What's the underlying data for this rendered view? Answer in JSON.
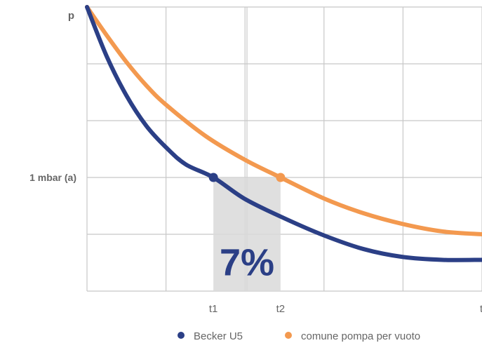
{
  "chart_data": {
    "type": "line",
    "title": "",
    "xlabel": "t",
    "ylabel": "p",
    "xlim": [
      0,
      10
    ],
    "ylim": [
      0,
      5
    ],
    "grid": true,
    "legend_position": "bottom-right",
    "reference_level": {
      "label": "1 mbar (a)",
      "y": 2
    },
    "x_markers": [
      {
        "label": "t1",
        "x": 3.2
      },
      {
        "label": "t2",
        "x": 4.9
      }
    ],
    "highlight": {
      "label": "7%",
      "x_from": 3.2,
      "x_to": 4.9,
      "y_from": 0,
      "y_to": 2,
      "color": "#d9d9d9"
    },
    "series": [
      {
        "name": "Becker U5",
        "color": "#2b3f86",
        "x": [
          0,
          0.5,
          1,
          1.5,
          2,
          2.5,
          3.2,
          4,
          5,
          6,
          7,
          8,
          9,
          10
        ],
        "values": [
          5.0,
          4.13,
          3.44,
          2.91,
          2.53,
          2.23,
          2.0,
          1.62,
          1.28,
          0.98,
          0.74,
          0.6,
          0.55,
          0.55
        ]
      },
      {
        "name": "comune pompa per vuoto",
        "color": "#f3994f",
        "x": [
          0,
          0.5,
          1,
          1.5,
          2,
          3,
          4,
          4.9,
          6,
          7,
          8,
          9,
          10
        ],
        "values": [
          5.0,
          4.5,
          4.03,
          3.62,
          3.28,
          2.73,
          2.31,
          2.0,
          1.63,
          1.37,
          1.18,
          1.05,
          1.0
        ]
      }
    ]
  }
}
